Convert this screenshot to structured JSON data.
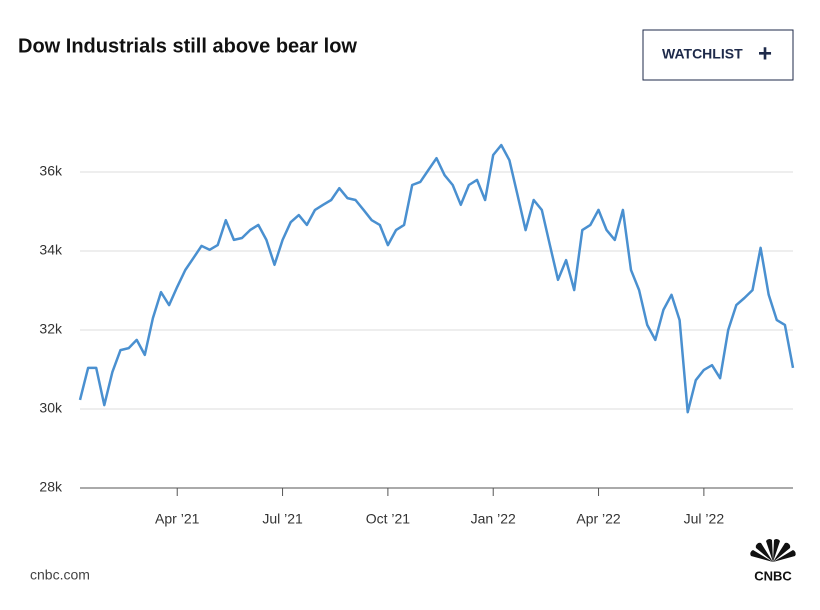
{
  "chart_data": {
    "type": "line",
    "title": "Dow Industrials still above bear low",
    "categories": [
      null,
      null,
      null,
      null,
      null,
      null,
      null,
      null,
      null,
      null,
      null,
      null,
      "Apr ’21",
      null,
      null,
      null,
      null,
      null,
      null,
      null,
      null,
      null,
      null,
      null,
      null,
      "Jul ’21",
      null,
      null,
      null,
      null,
      null,
      null,
      null,
      null,
      null,
      null,
      null,
      null,
      "Oct ’21",
      null,
      null,
      null,
      null,
      null,
      null,
      null,
      null,
      null,
      null,
      null,
      null,
      "Jan ’22",
      null,
      null,
      null,
      null,
      null,
      null,
      null,
      null,
      null,
      null,
      null,
      null,
      "Apr ’22",
      null,
      null,
      null,
      null,
      null,
      null,
      null,
      null,
      null,
      null,
      null,
      null,
      "Jul ’22",
      null,
      null,
      null,
      null,
      null,
      null,
      null,
      null,
      null,
      null,
      null
    ],
    "values": [
      30230,
      31040,
      31040,
      30100,
      30940,
      31490,
      31540,
      31750,
      31370,
      32300,
      32960,
      32630,
      33090,
      33520,
      33820,
      34130,
      34030,
      34150,
      34780,
      34280,
      34330,
      34530,
      34660,
      34280,
      33650,
      34280,
      34730,
      34910,
      34660,
      35040,
      35170,
      35290,
      35590,
      35340,
      35290,
      35040,
      34780,
      34660,
      34150,
      34530,
      34660,
      35670,
      35750,
      36050,
      36350,
      35920,
      35670,
      35170,
      35670,
      35800,
      35290,
      36430,
      36680,
      36300,
      35420,
      34530,
      35290,
      35040,
      34150,
      33270,
      33770,
      33010,
      34530,
      34660,
      35040,
      34530,
      34280,
      35040,
      33520,
      33010,
      32130,
      31750,
      32510,
      32890,
      32250,
      29920,
      30730,
      30990,
      31110,
      30780,
      32000,
      32630,
      32810,
      33010,
      34080,
      32890,
      32250,
      32130,
      31040
    ],
    "color": "#4a90d0",
    "ylim": [
      28000,
      38000
    ],
    "yticks": [
      {
        "value": 28000,
        "label": "28k"
      },
      {
        "value": 30000,
        "label": "30k"
      },
      {
        "value": 32000,
        "label": "32k"
      },
      {
        "value": 34000,
        "label": "34k"
      },
      {
        "value": 36000,
        "label": "36k"
      }
    ],
    "grid": true
  },
  "watchlist_button": {
    "label": "WATCHLIST",
    "icon": "+"
  },
  "source": "cnbc.com",
  "logo": "CNBC"
}
